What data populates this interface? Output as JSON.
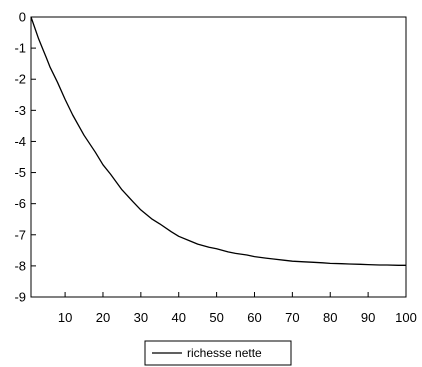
{
  "chart_data": {
    "type": "line",
    "title": "",
    "xlabel": "",
    "ylabel": "",
    "xlim": [
      1,
      100
    ],
    "ylim": [
      -9,
      0
    ],
    "xticks": [
      10,
      20,
      30,
      40,
      50,
      60,
      70,
      80,
      90,
      100
    ],
    "yticks": [
      0,
      -1,
      -2,
      -3,
      -4,
      -5,
      -6,
      -7,
      -8,
      -9
    ],
    "grid": false,
    "legend": {
      "position": "bottom-center"
    },
    "series": [
      {
        "name": "richesse nette",
        "color": "#000000",
        "x": [
          1,
          2,
          3,
          4,
          5,
          6,
          8,
          10,
          12,
          15,
          18,
          20,
          22,
          25,
          28,
          30,
          33,
          35,
          38,
          40,
          43,
          45,
          48,
          50,
          53,
          55,
          58,
          60,
          63,
          65,
          68,
          70,
          73,
          75,
          78,
          80,
          83,
          85,
          88,
          90,
          93,
          95,
          98,
          100
        ],
        "y": [
          0,
          -0.35,
          -0.7,
          -1.0,
          -1.3,
          -1.6,
          -2.1,
          -2.65,
          -3.15,
          -3.8,
          -4.35,
          -4.75,
          -5.05,
          -5.55,
          -5.95,
          -6.2,
          -6.5,
          -6.65,
          -6.9,
          -7.05,
          -7.2,
          -7.3,
          -7.4,
          -7.45,
          -7.55,
          -7.6,
          -7.65,
          -7.7,
          -7.75,
          -7.78,
          -7.82,
          -7.85,
          -7.87,
          -7.88,
          -7.9,
          -7.92,
          -7.93,
          -7.94,
          -7.95,
          -7.96,
          -7.97,
          -7.97,
          -7.98,
          -7.98
        ]
      }
    ]
  }
}
